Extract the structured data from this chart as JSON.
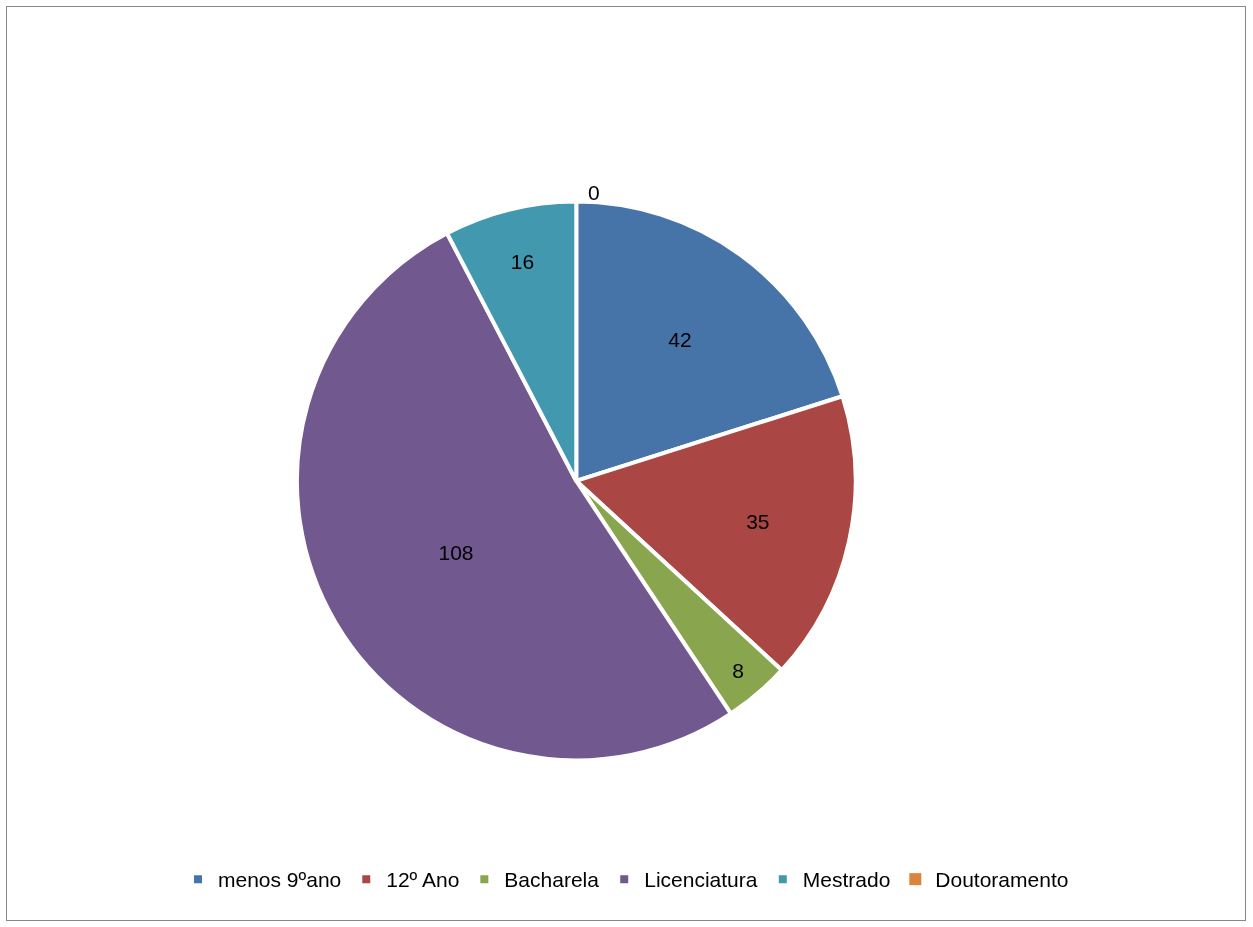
{
  "chart_data": {
    "type": "pie",
    "categories": [
      "menos 9ºano",
      "12º Ano",
      "Bacharela",
      "Licenciatura",
      "Mestrado",
      "Doutoramento"
    ],
    "values": [
      42,
      35,
      8,
      108,
      16,
      0
    ],
    "colors": [
      "#4674a9",
      "#aa4643",
      "#89a54e",
      "#71588f",
      "#4198af",
      "#db843d"
    ],
    "value_labels": [
      "42",
      "35",
      "8",
      "108",
      "16",
      "0"
    ],
    "legend": "bottom"
  }
}
